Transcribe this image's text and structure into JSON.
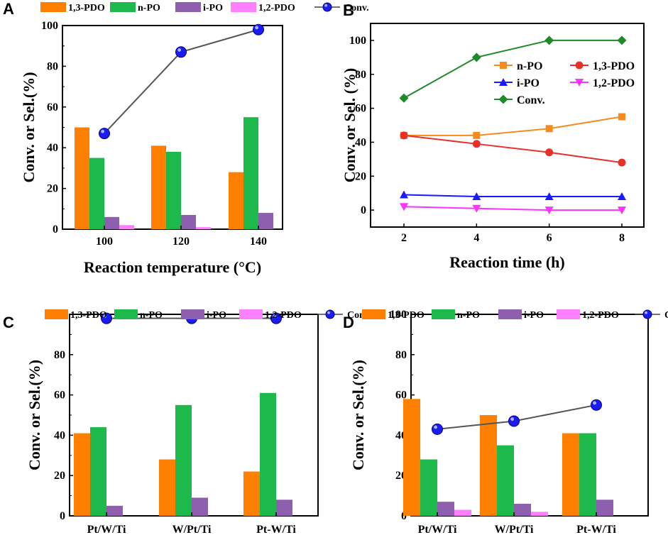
{
  "chart_data": [
    {
      "panel": "A",
      "type": "bar",
      "categories": [
        "100",
        "120",
        "140"
      ],
      "series": [
        {
          "name": "1,3-PDO",
          "color": "#ff8000",
          "values": [
            50,
            41,
            28
          ]
        },
        {
          "name": "n-PO",
          "color": "#1db94a",
          "values": [
            35,
            38,
            55
          ]
        },
        {
          "name": "i-PO",
          "color": "#8e5faf",
          "values": [
            6,
            7,
            8
          ]
        },
        {
          "name": "1,2-PDO",
          "color": "#ff80ff",
          "values": [
            2,
            1,
            0
          ]
        }
      ],
      "line_series": {
        "name": "Conv.",
        "color": "#1f1fff",
        "values": [
          47,
          87,
          98
        ]
      },
      "xlabel": "Reaction temperature (°C)",
      "ylabel": "Conv. or Sel.(%)",
      "ylim": [
        0,
        100
      ],
      "yticks": [
        "0",
        "20",
        "40",
        "60",
        "80",
        "100"
      ]
    },
    {
      "panel": "B",
      "type": "line",
      "x": [
        2,
        4,
        6,
        8
      ],
      "xticks": [
        "2",
        "4",
        "6",
        "8"
      ],
      "series": [
        {
          "name": "n-PO",
          "color": "#f58b1f",
          "marker": "square",
          "values": [
            44,
            44,
            48,
            55
          ]
        },
        {
          "name": "1,3-PDO",
          "color": "#e8302a",
          "marker": "circle",
          "values": [
            44,
            39,
            34,
            28
          ]
        },
        {
          "name": "i-PO",
          "color": "#1a1aff",
          "marker": "triangle-up",
          "values": [
            9,
            8,
            8,
            8
          ]
        },
        {
          "name": "1,2-PDO",
          "color": "#ff33ff",
          "marker": "triangle-down",
          "values": [
            2,
            1,
            0,
            0
          ]
        },
        {
          "name": "Conv.",
          "color": "#1e8a28",
          "marker": "diamond",
          "values": [
            66,
            90,
            100,
            100
          ]
        }
      ],
      "xlabel": "Reaction time (h)",
      "ylabel": "Conv. or Sel. (%)",
      "ylim": [
        -10,
        110
      ],
      "yticks": [
        "0",
        "20",
        "40",
        "60",
        "80",
        "100"
      ]
    },
    {
      "panel": "C",
      "type": "bar",
      "categories": [
        "Pt/W/Ti",
        "W/Pt/Ti",
        "Pt-W/Ti"
      ],
      "series": [
        {
          "name": "1,3-PDO",
          "color": "#ff8000",
          "values": [
            41,
            28,
            22
          ]
        },
        {
          "name": "n-PO",
          "color": "#1db94a",
          "values": [
            44,
            55,
            61
          ]
        },
        {
          "name": "i-PO",
          "color": "#8e5faf",
          "values": [
            5,
            9,
            8
          ]
        },
        {
          "name": "1,2-PDO",
          "color": "#ff80ff",
          "values": [
            0,
            0,
            0
          ]
        }
      ],
      "line_series": {
        "name": "Conv.",
        "color": "#1f1fff",
        "values": [
          98,
          98,
          98
        ]
      },
      "xlabel": "",
      "ylabel": "Conv. or Sel.(%)",
      "ylim": [
        0,
        100
      ],
      "yticks": [
        "0",
        "20",
        "40",
        "60",
        "80",
        "100"
      ]
    },
    {
      "panel": "D",
      "type": "bar",
      "categories": [
        "Pt/W/Ti",
        "W/Pt/Ti",
        "Pt-W/Ti"
      ],
      "series": [
        {
          "name": "1,3-PDO",
          "color": "#ff8000",
          "values": [
            58,
            50,
            41
          ]
        },
        {
          "name": "n-PO",
          "color": "#1db94a",
          "values": [
            28,
            35,
            41
          ]
        },
        {
          "name": "i-PO",
          "color": "#8e5faf",
          "values": [
            7,
            6,
            8
          ]
        },
        {
          "name": "1,2-PDO",
          "color": "#ff80ff",
          "values": [
            3,
            2,
            0
          ]
        }
      ],
      "line_series": {
        "name": "Conv.",
        "color": "#1f1fff",
        "values": [
          43,
          47,
          55
        ]
      },
      "xlabel": "",
      "ylabel": "Conv. or Sel.(%)",
      "ylim": [
        0,
        100
      ],
      "yticks": [
        "0",
        "20",
        "40",
        "60",
        "80",
        "100"
      ]
    }
  ]
}
